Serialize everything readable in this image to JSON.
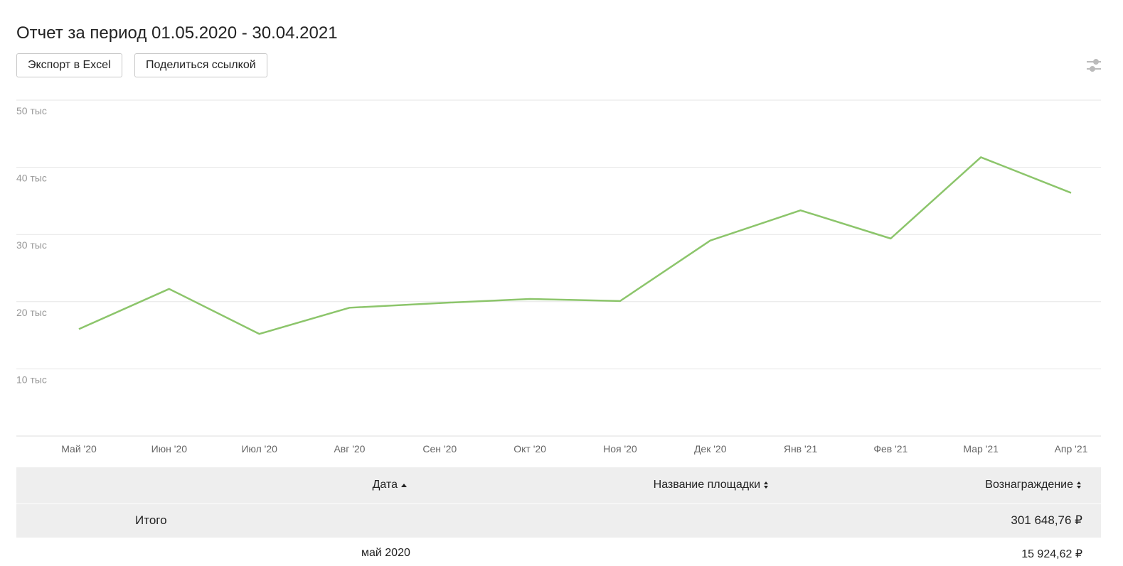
{
  "header": {
    "title": "Отчет за период 01.05.2020 - 30.04.2021"
  },
  "buttons": [
    "Экспорт в Excel",
    "Поделиться ссылкой"
  ],
  "chart_data": {
    "type": "line",
    "categories": [
      "Май '20",
      "Июн '20",
      "Июл '20",
      "Авг '20",
      "Сен '20",
      "Окт '20",
      "Ноя '20",
      "Дек '20",
      "Янв '21",
      "Фев '21",
      "Мар '21",
      "Апр '21"
    ],
    "values": [
      15925,
      21900,
      15200,
      19100,
      19800,
      20400,
      20100,
      29100,
      33600,
      29400,
      41500,
      36200
    ],
    "color": "#8cc56b",
    "ylim": [
      0,
      50000
    ],
    "yticks": [
      {
        "value": 10000,
        "label": "10 тыс"
      },
      {
        "value": 20000,
        "label": "20 тыс"
      },
      {
        "value": 30000,
        "label": "30 тыс"
      },
      {
        "value": 40000,
        "label": "40 тыс"
      },
      {
        "value": 50000,
        "label": "50 тыс"
      }
    ],
    "grid": true
  },
  "table": {
    "columns": [
      "Дата",
      "Название площадки",
      "Вознаграждение"
    ],
    "total": {
      "label": "Итого",
      "reward": "301 648,76 ₽"
    },
    "rows": [
      {
        "date": "май 2020",
        "reward": "15 924,62 ₽"
      }
    ]
  }
}
